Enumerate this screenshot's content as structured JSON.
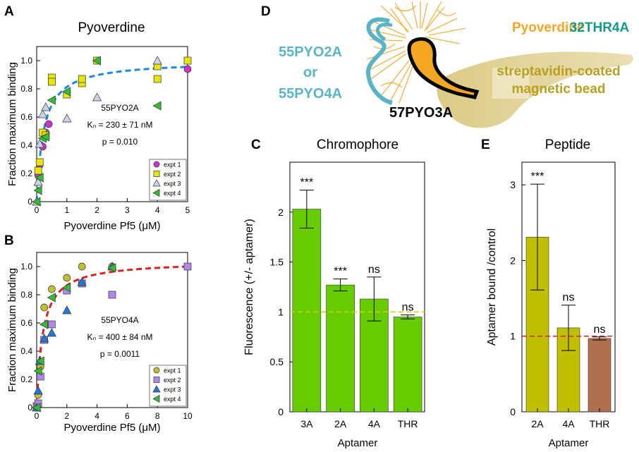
{
  "panel_letters": {
    "a": "A",
    "b": "B",
    "c": "C",
    "d": "D",
    "e": "E"
  },
  "colors": {
    "circle": "#cc33cc",
    "square": "#e6e600",
    "triangle_a": "#c8d4e6",
    "triangle_b": "#2277dd",
    "left_triangle": "#33bb33",
    "olive_circle": "#c0c030",
    "lilac_square": "#b088e8",
    "green_bar": "#66cc00",
    "olive_bar": "#c0c000",
    "brown_bar": "#b07050",
    "blue_curve": "#1e88e5",
    "red_curve": "#dd2222",
    "yellow_ref": "#c8d400",
    "red_ref": "#dd2222",
    "aptamer_2a": "#5ab4c8",
    "pyoverdine": "#f5a623",
    "bead": "#e0d29a",
    "bead_text": "#b8a020",
    "thr_text": "#139a8a"
  },
  "chart_data": [
    {
      "id": "A",
      "type": "scatter",
      "title": "Pyoverdine",
      "xlabel": "Pyoverdine Pf5 (μM)",
      "ylabel": "Fraction maximum binding",
      "xlim": [
        0,
        5
      ],
      "ylim": [
        0,
        1.1
      ],
      "xticks": [
        "0",
        "1",
        "2",
        "3",
        "4",
        "5"
      ],
      "yticks": [
        "0",
        "0.2",
        "0.4",
        "0.6",
        "0.8",
        "1.0"
      ],
      "annotation": {
        "name": "55PYO2A",
        "kd": "Kₙ = 230 ± 71 nM",
        "p": "p = 0.010"
      },
      "fit": {
        "kd_uM": 0.23,
        "bmax": 1.0
      },
      "series": [
        {
          "name": "expt 1",
          "marker": "circle",
          "points": [
            [
              0.05,
              0.19
            ],
            [
              0.1,
              0.26
            ],
            [
              0.2,
              0.39
            ],
            [
              0.3,
              0.49
            ],
            [
              0.4,
              0.55
            ],
            [
              2.0,
              1.0
            ],
            [
              5.0,
              0.94
            ]
          ]
        },
        {
          "name": "expt 2",
          "marker": "square",
          "points": [
            [
              0.05,
              0.22
            ],
            [
              0.1,
              0.28
            ],
            [
              0.2,
              0.49
            ],
            [
              0.3,
              0.47
            ],
            [
              0.5,
              0.88
            ],
            [
              0.5,
              0.85
            ],
            [
              1.0,
              0.76
            ],
            [
              1.5,
              0.84
            ],
            [
              1.5,
              0.87
            ],
            [
              2.0,
              1.0
            ],
            [
              4.0,
              0.96
            ],
            [
              4.0,
              0.87
            ],
            [
              5.0,
              1.0
            ]
          ]
        },
        {
          "name": "expt 3",
          "marker": "triangle",
          "points": [
            [
              0.0,
              0.0
            ],
            [
              0.05,
              0.14
            ],
            [
              0.1,
              0.41
            ],
            [
              0.2,
              0.62
            ],
            [
              0.3,
              0.67
            ],
            [
              1.0,
              0.59
            ],
            [
              2.0,
              0.74
            ],
            [
              4.0,
              1.0
            ]
          ]
        },
        {
          "name": "expt 4",
          "marker": "left-triangle",
          "points": [
            [
              0.0,
              0.0
            ],
            [
              0.05,
              0.08
            ],
            [
              0.1,
              0.17
            ],
            [
              0.2,
              0.45
            ],
            [
              0.3,
              0.46
            ],
            [
              0.5,
              0.72
            ],
            [
              1.0,
              0.78
            ],
            [
              2.0,
              1.0
            ],
            [
              4.0,
              0.68
            ]
          ]
        }
      ]
    },
    {
      "id": "B",
      "type": "scatter",
      "title": "",
      "xlabel": "Pyoverdine Pf5 (μM)",
      "ylabel": "Fraction maximum binding",
      "xlim": [
        0,
        10
      ],
      "ylim": [
        0,
        1.1
      ],
      "xticks": [
        "0",
        "2",
        "4",
        "6",
        "8",
        "10"
      ],
      "yticks": [
        "0",
        "0.2",
        "0.4",
        "0.6",
        "0.8",
        "1.0"
      ],
      "annotation": {
        "name": "55PYO4A",
        "kd": "Kₙ = 400 ± 84 nM",
        "p": "p = 0.0011"
      },
      "fit": {
        "kd_uM": 0.4,
        "bmax": 1.04
      },
      "series": [
        {
          "name": "expt 1",
          "marker": "circle",
          "points": [
            [
              0.0,
              0.0
            ],
            [
              0.1,
              0.09
            ],
            [
              0.25,
              0.29
            ],
            [
              0.5,
              0.71
            ],
            [
              1.0,
              0.84
            ],
            [
              2.0,
              0.92
            ],
            [
              3.0,
              1.0
            ],
            [
              5.0,
              1.0
            ]
          ]
        },
        {
          "name": "expt 2",
          "marker": "square",
          "points": [
            [
              0.0,
              0.01
            ],
            [
              0.1,
              0.03
            ],
            [
              0.25,
              0.22
            ],
            [
              0.5,
              0.48
            ],
            [
              1.0,
              0.59
            ],
            [
              2.0,
              0.83
            ],
            [
              3.0,
              0.88
            ],
            [
              5.0,
              0.8
            ],
            [
              10.0,
              1.0
            ]
          ]
        },
        {
          "name": "expt 3",
          "marker": "triangle",
          "points": [
            [
              0.0,
              0.0
            ],
            [
              0.1,
              0.12
            ],
            [
              0.2,
              0.33
            ],
            [
              0.5,
              0.49
            ],
            [
              1.0,
              0.53
            ],
            [
              2.0,
              0.69
            ],
            [
              3.0,
              0.89
            ],
            [
              5.0,
              1.0
            ]
          ]
        },
        {
          "name": "expt 4",
          "marker": "left-triangle",
          "points": [
            [
              0.0,
              0.0
            ],
            [
              0.1,
              0.26
            ],
            [
              0.25,
              0.33
            ],
            [
              0.5,
              0.59
            ],
            [
              1.0,
              0.78
            ],
            [
              2.0,
              0.85
            ],
            [
              5.0,
              0.99
            ]
          ]
        }
      ]
    },
    {
      "id": "C",
      "type": "bar",
      "title": "Chromophore",
      "xlabel": "Aptamer",
      "ylabel": "Fluorescence (+/- aptamer)",
      "ylim": [
        0,
        2.5
      ],
      "yticks": [
        "0",
        "0.5",
        "1",
        "1.5",
        "2"
      ],
      "categories": [
        "3A",
        "2A",
        "4A",
        "THR"
      ],
      "values": [
        2.03,
        1.27,
        1.13,
        0.95
      ],
      "errors": [
        0.19,
        0.06,
        0.22,
        0.02
      ],
      "significance": [
        "***",
        "***",
        "ns",
        "ns"
      ],
      "reference_line": 1.0
    },
    {
      "id": "E",
      "type": "bar",
      "title": "Peptide",
      "xlabel": "Aptamer",
      "ylabel": "Aptamer bound /control",
      "ylim": [
        0,
        3.3
      ],
      "yticks": [
        "0",
        "1",
        "2",
        "3"
      ],
      "categories": [
        "2A",
        "4A",
        "THR"
      ],
      "values": [
        2.31,
        1.11,
        0.97
      ],
      "errors": [
        0.7,
        0.3,
        0.02
      ],
      "significance": [
        "***",
        "ns",
        "ns"
      ],
      "reference_line": 1.0
    }
  ],
  "diagram": {
    "label_pyoverdine": "Pyoverdine",
    "label_thr": "32THR4A",
    "label_aptamer_line1": "55PYO2A",
    "label_aptamer_line2": "or",
    "label_aptamer_line3": "55PYO4A",
    "label_bead_line1": "streptavidin-coated",
    "label_bead_line2": "magnetic bead",
    "label_57": "57PYO3A"
  }
}
